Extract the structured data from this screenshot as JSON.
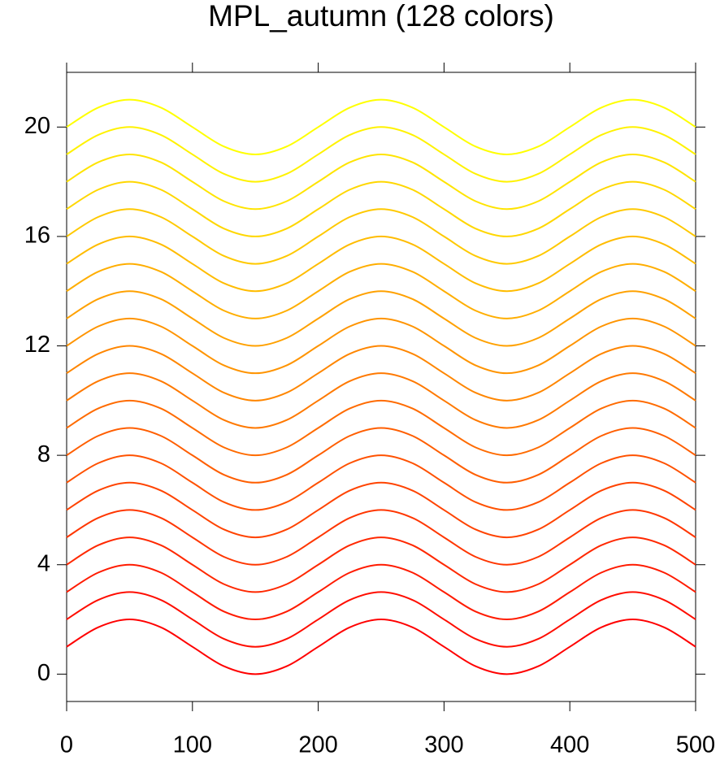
{
  "chart_data": {
    "type": "line",
    "title": "MPL_autumn (128 colors)",
    "x": [
      0,
      25,
      50,
      75,
      100,
      125,
      150,
      175,
      200,
      225,
      250,
      275,
      300,
      325,
      350,
      375,
      400,
      425,
      450,
      475,
      500
    ],
    "xlim": [
      0,
      500
    ],
    "xticks": [
      0,
      100,
      200,
      300,
      400,
      500
    ],
    "ylim": [
      -1,
      22
    ],
    "yticks": [
      0,
      4,
      8,
      12,
      16,
      20
    ],
    "series": [
      {
        "color": "#ff0000",
        "values": [
          1,
          1.71,
          2,
          1.71,
          1,
          0.29,
          0,
          0.29,
          1,
          1.71,
          2,
          1.71,
          1,
          0.29,
          0,
          0.29,
          1,
          1.71,
          2,
          1.71,
          1
        ]
      },
      {
        "color": "#ff0d00",
        "values": [
          2,
          2.71,
          3,
          2.71,
          2,
          1.29,
          1,
          1.29,
          2,
          2.71,
          3,
          2.71,
          2,
          1.29,
          1,
          1.29,
          2,
          2.71,
          3,
          2.71,
          2
        ]
      },
      {
        "color": "#ff1b00",
        "values": [
          3,
          3.71,
          4,
          3.71,
          3,
          2.29,
          2,
          2.29,
          3,
          3.71,
          4,
          3.71,
          3,
          2.29,
          2,
          2.29,
          3,
          3.71,
          4,
          3.71,
          3
        ]
      },
      {
        "color": "#ff2800",
        "values": [
          4,
          4.71,
          5,
          4.71,
          4,
          3.29,
          3,
          3.29,
          4,
          4.71,
          5,
          4.71,
          4,
          3.29,
          3,
          3.29,
          4,
          4.71,
          5,
          4.71,
          4
        ]
      },
      {
        "color": "#ff3600",
        "values": [
          5,
          5.71,
          6,
          5.71,
          5,
          4.29,
          4,
          4.29,
          5,
          5.71,
          6,
          5.71,
          5,
          4.29,
          4,
          4.29,
          5,
          5.71,
          6,
          5.71,
          5
        ]
      },
      {
        "color": "#ff4300",
        "values": [
          6,
          6.71,
          7,
          6.71,
          6,
          5.29,
          5,
          5.29,
          6,
          6.71,
          7,
          6.71,
          6,
          5.29,
          5,
          5.29,
          6,
          6.71,
          7,
          6.71,
          6
        ]
      },
      {
        "color": "#ff5100",
        "values": [
          7,
          7.71,
          8,
          7.71,
          7,
          6.29,
          6,
          6.29,
          7,
          7.71,
          8,
          7.71,
          7,
          6.29,
          6,
          6.29,
          7,
          7.71,
          8,
          7.71,
          7
        ]
      },
      {
        "color": "#ff5e00",
        "values": [
          8,
          8.71,
          9,
          8.71,
          8,
          7.29,
          7,
          7.29,
          8,
          8.71,
          9,
          8.71,
          8,
          7.29,
          7,
          7.29,
          8,
          8.71,
          9,
          8.71,
          8
        ]
      },
      {
        "color": "#ff6b00",
        "values": [
          9,
          9.71,
          10,
          9.71,
          9,
          8.29,
          8,
          8.29,
          9,
          9.71,
          10,
          9.71,
          9,
          8.29,
          8,
          8.29,
          9,
          9.71,
          10,
          9.71,
          9
        ]
      },
      {
        "color": "#ff7900",
        "values": [
          10,
          10.71,
          11,
          10.71,
          10,
          9.29,
          9,
          9.29,
          10,
          10.71,
          11,
          10.71,
          10,
          9.29,
          9,
          9.29,
          10,
          10.71,
          11,
          10.71,
          10
        ]
      },
      {
        "color": "#ff8600",
        "values": [
          11,
          11.71,
          12,
          11.71,
          11,
          10.29,
          10,
          10.29,
          11,
          11.71,
          12,
          11.71,
          11,
          10.29,
          10,
          10.29,
          11,
          11.71,
          12,
          11.71,
          11
        ]
      },
      {
        "color": "#ff9400",
        "values": [
          12,
          12.71,
          13,
          12.71,
          12,
          11.29,
          11,
          11.29,
          12,
          12.71,
          13,
          12.71,
          12,
          11.29,
          11,
          11.29,
          12,
          12.71,
          13,
          12.71,
          12
        ]
      },
      {
        "color": "#ffa100",
        "values": [
          13,
          13.71,
          14,
          13.71,
          13,
          12.29,
          12,
          12.29,
          13,
          13.71,
          14,
          13.71,
          13,
          12.29,
          12,
          12.29,
          13,
          13.71,
          14,
          13.71,
          13
        ]
      },
      {
        "color": "#ffae00",
        "values": [
          14,
          14.71,
          15,
          14.71,
          14,
          13.29,
          13,
          13.29,
          14,
          14.71,
          15,
          14.71,
          14,
          13.29,
          13,
          13.29,
          14,
          14.71,
          15,
          14.71,
          14
        ]
      },
      {
        "color": "#ffbc00",
        "values": [
          15,
          15.71,
          16,
          15.71,
          15,
          14.29,
          14,
          14.29,
          15,
          15.71,
          16,
          15.71,
          15,
          14.29,
          14,
          14.29,
          15,
          15.71,
          16,
          15.71,
          15
        ]
      },
      {
        "color": "#ffc900",
        "values": [
          16,
          16.71,
          17,
          16.71,
          16,
          15.29,
          15,
          15.29,
          16,
          16.71,
          17,
          16.71,
          16,
          15.29,
          15,
          15.29,
          16,
          16.71,
          17,
          16.71,
          16
        ]
      },
      {
        "color": "#ffd700",
        "values": [
          17,
          17.71,
          18,
          17.71,
          17,
          16.29,
          16,
          16.29,
          17,
          17.71,
          18,
          17.71,
          17,
          16.29,
          16,
          16.29,
          17,
          17.71,
          18,
          17.71,
          17
        ]
      },
      {
        "color": "#ffe400",
        "values": [
          18,
          18.71,
          19,
          18.71,
          18,
          17.29,
          17,
          17.29,
          18,
          18.71,
          19,
          18.71,
          18,
          17.29,
          17,
          17.29,
          18,
          18.71,
          19,
          18.71,
          18
        ]
      },
      {
        "color": "#fff200",
        "values": [
          19,
          19.71,
          20,
          19.71,
          19,
          18.29,
          18,
          18.29,
          19,
          19.71,
          20,
          19.71,
          19,
          18.29,
          18,
          18.29,
          19,
          19.71,
          20,
          19.71,
          19
        ]
      },
      {
        "color": "#ffff00",
        "values": [
          20,
          20.71,
          21,
          20.71,
          20,
          19.29,
          19,
          19.29,
          20,
          20.71,
          21,
          20.71,
          20,
          19.29,
          19,
          19.29,
          20,
          20.71,
          21,
          20.71,
          20
        ]
      }
    ]
  }
}
